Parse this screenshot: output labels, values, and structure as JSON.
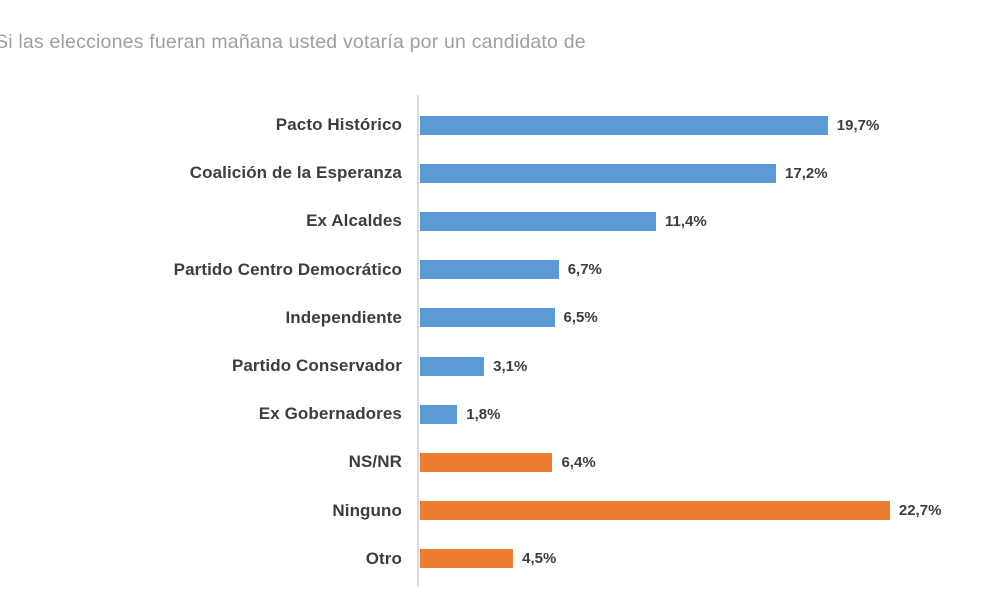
{
  "chart_data": {
    "type": "bar",
    "orientation": "horizontal",
    "title": "Si las elecciones fueran mañana usted votaría por un candidato de",
    "categories": [
      "Pacto Histórico",
      "Coalición de la Esperanza",
      "Ex Alcaldes",
      "Partido Centro Democrático",
      "Independiente",
      "Partido Conservador",
      "Ex Gobernadores",
      "NS/NR",
      "Ninguno",
      "Otro"
    ],
    "values": [
      19.7,
      17.2,
      11.4,
      6.7,
      6.5,
      3.1,
      1.8,
      6.4,
      22.7,
      4.5
    ],
    "value_labels": [
      "19,7%",
      "17,2%",
      "11,4%",
      "6,7%",
      "6,5%",
      "3,1%",
      "1,8%",
      "6,4%",
      "22,7%",
      "4,5%"
    ],
    "bar_colors": [
      "#5b9bd5",
      "#5b9bd5",
      "#5b9bd5",
      "#5b9bd5",
      "#5b9bd5",
      "#5b9bd5",
      "#5b9bd5",
      "#ed7d31",
      "#ed7d31",
      "#ed7d31"
    ],
    "colors": {
      "blue_series": "#5b9bd5",
      "orange_series": "#ed7d31",
      "axis_line": "#dcdcdc",
      "title_text": "#9a9fa6",
      "label_text": "#3d3d3d"
    },
    "value_suffix": "%",
    "decimal_separator": ",",
    "x_axis_visible": false,
    "gridlines": false,
    "legend": false,
    "xlim": [
      0,
      23.5
    ]
  }
}
